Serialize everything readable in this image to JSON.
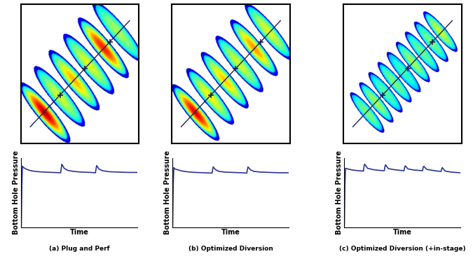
{
  "chart_data": [
    {
      "type": "line",
      "title": "(a) Plug and Perf",
      "x_label": "Time",
      "y_label": "Bottom Hole Pressure",
      "xlim": [
        0,
        100
      ],
      "ylim": [
        0,
        100
      ],
      "xticks": [],
      "yticks": [],
      "tick_labels": false,
      "grid": false,
      "x": [
        0,
        0.5,
        1,
        2,
        4,
        7,
        10,
        15,
        20,
        27,
        34,
        34.5,
        35,
        37,
        40,
        45,
        52,
        60,
        64,
        64.5,
        65,
        67,
        70,
        76,
        84,
        92,
        100
      ],
      "values": [
        2,
        60,
        88,
        86,
        84,
        82,
        81,
        80,
        79.5,
        79,
        78.5,
        85,
        91,
        85,
        82,
        80.5,
        79.5,
        79,
        78.5,
        84,
        89,
        84,
        81.5,
        80,
        79.5,
        79,
        79
      ],
      "color": "#2a3592"
    },
    {
      "type": "line",
      "title": "(b) Optimized Diversion",
      "x_label": "Time",
      "y_label": "Bottom Hole Pressure",
      "xlim": [
        0,
        100
      ],
      "ylim": [
        0,
        100
      ],
      "xticks": [],
      "yticks": [],
      "tick_labels": false,
      "grid": false,
      "x": [
        0,
        0.5,
        1,
        2,
        4,
        7,
        10,
        15,
        20,
        27,
        34,
        34.5,
        35,
        37,
        40,
        45,
        52,
        60,
        64,
        64.5,
        65,
        67,
        70,
        76,
        84,
        92,
        100
      ],
      "values": [
        2,
        60,
        86,
        84,
        83,
        81.5,
        80.5,
        79.5,
        79,
        78.5,
        78,
        83,
        87,
        83,
        80.5,
        79.5,
        79,
        78.5,
        78,
        83,
        87,
        83,
        80.5,
        79.5,
        79,
        78.5,
        78.5
      ],
      "color": "#2a3592"
    },
    {
      "type": "line",
      "title": "(c) Optimized Diversion (+in-stage)",
      "x_label": "Time",
      "y_label": "Bottom Hole Pressure",
      "xlim": [
        0,
        100
      ],
      "ylim": [
        0,
        100
      ],
      "xticks": [],
      "yticks": [],
      "tick_labels": false,
      "grid": false,
      "x": [
        0,
        0.5,
        1,
        3,
        7,
        12,
        16.5,
        17,
        17.5,
        20,
        25,
        30,
        34.5,
        35,
        35.5,
        38,
        43,
        48,
        51.5,
        52,
        52.5,
        55,
        60,
        64,
        67.5,
        68,
        68.5,
        71,
        76,
        80,
        83.5,
        84,
        84.5,
        87,
        92,
        100
      ],
      "values": [
        2,
        60,
        85,
        84,
        82.5,
        81.5,
        81,
        88,
        91,
        85,
        83,
        82,
        81.5,
        87,
        90,
        84.5,
        83,
        82,
        81.5,
        86,
        88.5,
        84,
        82.5,
        82,
        81.5,
        86,
        88,
        83.5,
        82,
        81,
        80.5,
        84,
        86,
        81,
        79.5,
        78.5
      ],
      "color": "#2a3592"
    }
  ]
}
